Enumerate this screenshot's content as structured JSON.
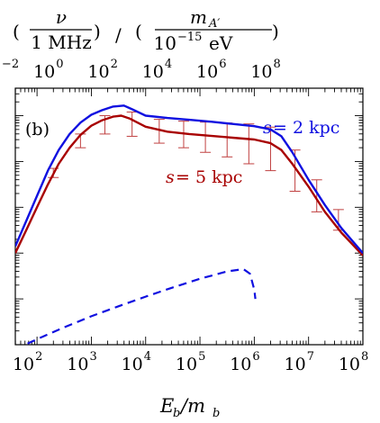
{
  "chart_data": {
    "type": "line",
    "panel_label": "(b)",
    "top_axis": {
      "label_parts": {
        "nu": "ν",
        "mhz": "1 MHz",
        "slash": "/",
        "m": "m",
        "m_sub": "A′",
        "den_base": "10",
        "den_exp": "−15",
        "den_unit": " eV"
      },
      "ticks": [
        {
          "base": "10",
          "exp": "−2",
          "pos": 1.4
        },
        {
          "base": "10",
          "exp": "0",
          "pos": 2.4
        },
        {
          "base": "10",
          "exp": "2",
          "pos": 3.4
        },
        {
          "base": "10",
          "exp": "4",
          "pos": 4.4
        },
        {
          "base": "10",
          "exp": "6",
          "pos": 5.4
        },
        {
          "base": "10",
          "exp": "8",
          "pos": 6.4
        }
      ]
    },
    "x_axis": {
      "label": "E_b/m_b",
      "label_main": "E",
      "label_sub1": "b",
      "label_slash": "/m",
      "label_sub2": "b",
      "scale": "log",
      "range_log10": [
        1.6,
        8.0
      ],
      "ticks": [
        {
          "base": "10",
          "exp": "2",
          "pos": 2
        },
        {
          "base": "10",
          "exp": "3",
          "pos": 3
        },
        {
          "base": "10",
          "exp": "4",
          "pos": 4
        },
        {
          "base": "10",
          "exp": "5",
          "pos": 5
        },
        {
          "base": "10",
          "exp": "6",
          "pos": 6
        },
        {
          "base": "10",
          "exp": "7",
          "pos": 7
        },
        {
          "base": "10",
          "exp": "8",
          "pos": 8
        }
      ]
    },
    "y_axis": {
      "scale": "log",
      "range_log10": [
        0,
        5.6
      ],
      "tick_labels_shown": false
    },
    "series": [
      {
        "name": "s = 2 kpc",
        "label_var": "s",
        "label_value": " = 2 kpc",
        "color": "#1010e0",
        "style": "solid",
        "points": [
          [
            1.6,
            2.15
          ],
          [
            1.8,
            2.7
          ],
          [
            2.0,
            3.25
          ],
          [
            2.2,
            3.8
          ],
          [
            2.4,
            4.25
          ],
          [
            2.6,
            4.6
          ],
          [
            2.8,
            4.85
          ],
          [
            3.0,
            5.02
          ],
          [
            3.2,
            5.12
          ],
          [
            3.4,
            5.2
          ],
          [
            3.6,
            5.22
          ],
          [
            3.75,
            5.14
          ],
          [
            4.0,
            5.0
          ],
          [
            4.4,
            4.95
          ],
          [
            4.8,
            4.91
          ],
          [
            5.2,
            4.87
          ],
          [
            5.6,
            4.82
          ],
          [
            6.0,
            4.77
          ],
          [
            6.3,
            4.7
          ],
          [
            6.5,
            4.55
          ],
          [
            6.7,
            4.2
          ],
          [
            7.0,
            3.6
          ],
          [
            7.3,
            3.05
          ],
          [
            7.6,
            2.55
          ],
          [
            8.0,
            2.0
          ]
        ]
      },
      {
        "name": "s = 5 kpc",
        "label_var": "s",
        "label_value": " = 5 kpc",
        "color": "#a80000",
        "style": "solid",
        "points": [
          [
            1.6,
            2.0
          ],
          [
            1.8,
            2.5
          ],
          [
            2.0,
            3.0
          ],
          [
            2.2,
            3.5
          ],
          [
            2.4,
            3.95
          ],
          [
            2.6,
            4.3
          ],
          [
            2.8,
            4.58
          ],
          [
            3.0,
            4.78
          ],
          [
            3.2,
            4.9
          ],
          [
            3.4,
            4.98
          ],
          [
            3.55,
            5.0
          ],
          [
            3.7,
            4.94
          ],
          [
            4.0,
            4.76
          ],
          [
            4.4,
            4.65
          ],
          [
            4.8,
            4.6
          ],
          [
            5.2,
            4.56
          ],
          [
            5.6,
            4.52
          ],
          [
            6.0,
            4.48
          ],
          [
            6.3,
            4.4
          ],
          [
            6.5,
            4.25
          ],
          [
            6.7,
            3.95
          ],
          [
            7.0,
            3.45
          ],
          [
            7.3,
            2.9
          ],
          [
            7.6,
            2.45
          ],
          [
            8.0,
            1.95
          ]
        ]
      },
      {
        "name": "dashed",
        "color": "#1010e0",
        "style": "dashed",
        "points": [
          [
            1.6,
            -0.1
          ],
          [
            2.0,
            0.12
          ],
          [
            2.5,
            0.38
          ],
          [
            3.0,
            0.62
          ],
          [
            3.5,
            0.84
          ],
          [
            4.0,
            1.05
          ],
          [
            4.5,
            1.25
          ],
          [
            5.0,
            1.44
          ],
          [
            5.5,
            1.6
          ],
          [
            5.8,
            1.65
          ],
          [
            5.92,
            1.55
          ],
          [
            6.0,
            1.2
          ],
          [
            6.02,
            1.0
          ]
        ]
      }
    ],
    "error_bars": {
      "color": "#c04040",
      "points": [
        {
          "x": 2.3,
          "y": 3.75,
          "lo": 3.65,
          "hi": 3.85
        },
        {
          "x": 2.8,
          "y": 4.45,
          "lo": 4.3,
          "hi": 4.6
        },
        {
          "x": 3.25,
          "y": 4.82,
          "lo": 4.6,
          "hi": 5.0
        },
        {
          "x": 3.75,
          "y": 4.92,
          "lo": 4.55,
          "hi": 5.08
        },
        {
          "x": 4.25,
          "y": 4.78,
          "lo": 4.4,
          "hi": 4.92
        },
        {
          "x": 4.7,
          "y": 4.72,
          "lo": 4.3,
          "hi": 4.88
        },
        {
          "x": 5.1,
          "y": 4.68,
          "lo": 4.2,
          "hi": 4.86
        },
        {
          "x": 5.5,
          "y": 4.65,
          "lo": 4.1,
          "hi": 4.84
        },
        {
          "x": 5.9,
          "y": 4.6,
          "lo": 3.95,
          "hi": 4.82
        },
        {
          "x": 6.3,
          "y": 4.5,
          "lo": 3.8,
          "hi": 4.75
        },
        {
          "x": 6.75,
          "y": 3.95,
          "lo": 3.35,
          "hi": 4.25
        },
        {
          "x": 7.15,
          "y": 3.3,
          "lo": 2.9,
          "hi": 3.6
        },
        {
          "x": 7.55,
          "y": 2.75,
          "lo": 2.5,
          "hi": 2.95
        }
      ]
    }
  }
}
